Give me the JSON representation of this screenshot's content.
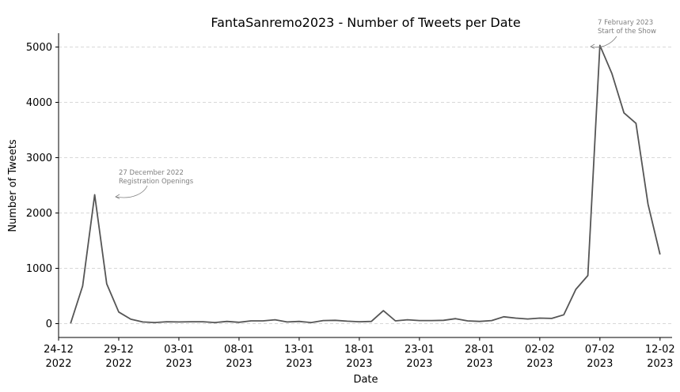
{
  "chart_data": {
    "type": "line",
    "title": "FantaSanremo2023 - Number of Tweets per Date",
    "xlabel": "Date",
    "ylabel": "Number of Tweets",
    "x_start": "2022-12-25",
    "xlim": [
      "2022-12-24",
      "2023-02-13"
    ],
    "ylim": [
      -250,
      5250
    ],
    "grid": "y-dashed",
    "line_color": "#555555",
    "y_ticks": [
      0,
      1000,
      2000,
      3000,
      4000,
      5000
    ],
    "x_ticks": [
      {
        "date": "2022-12-24",
        "line1": "24-12",
        "line2": "2022"
      },
      {
        "date": "2022-12-29",
        "line1": "29-12",
        "line2": "2022"
      },
      {
        "date": "2023-01-03",
        "line1": "03-01",
        "line2": "2023"
      },
      {
        "date": "2023-01-08",
        "line1": "08-01",
        "line2": "2023"
      },
      {
        "date": "2023-01-13",
        "line1": "13-01",
        "line2": "2023"
      },
      {
        "date": "2023-01-18",
        "line1": "18-01",
        "line2": "2023"
      },
      {
        "date": "2023-01-23",
        "line1": "23-01",
        "line2": "2023"
      },
      {
        "date": "2023-01-28",
        "line1": "28-01",
        "line2": "2023"
      },
      {
        "date": "2023-02-02",
        "line1": "02-02",
        "line2": "2023"
      },
      {
        "date": "2023-02-07",
        "line1": "07-02",
        "line2": "2023"
      },
      {
        "date": "2023-02-12",
        "line1": "12-02",
        "line2": "2023"
      }
    ],
    "values": [
      5,
      680,
      2330,
      720,
      210,
      80,
      30,
      20,
      35,
      30,
      35,
      35,
      20,
      40,
      25,
      50,
      50,
      70,
      30,
      40,
      20,
      55,
      60,
      45,
      35,
      40,
      235,
      50,
      70,
      55,
      55,
      60,
      90,
      50,
      40,
      55,
      125,
      100,
      85,
      100,
      95,
      160,
      620,
      870,
      5030,
      4520,
      3810,
      3620,
      2160,
      1250
    ],
    "annotations": [
      {
        "date": "2022-12-27",
        "value": 2330,
        "line1": "27 December 2022",
        "line2": "Registration Openings"
      },
      {
        "date": "2023-02-07",
        "value": 5030,
        "line1": "7 February 2023",
        "line2": "Start of the Show"
      }
    ]
  }
}
